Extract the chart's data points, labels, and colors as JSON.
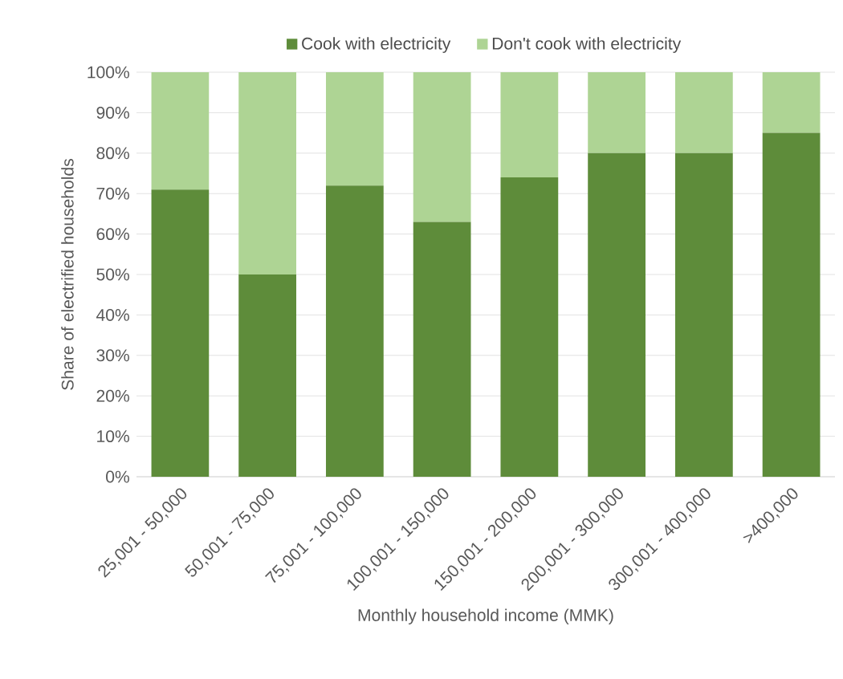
{
  "chart_data": {
    "type": "bar",
    "stacked": true,
    "xlabel": "Monthly household income (MMK)",
    "ylabel": "Share of electrified households",
    "categories": [
      "25,001 - 50,000",
      "50,001 - 75,000",
      "75,001 - 100,000",
      "100,001 - 150,000",
      "150,001 - 200,000",
      "200,001 - 300,000",
      "300,001 - 400,000",
      ">400,000"
    ],
    "series": [
      {
        "name": "Cook with electricity",
        "color": "#5e8c3a",
        "values": [
          71,
          50,
          72,
          63,
          74,
          80,
          80,
          85
        ]
      },
      {
        "name": "Don't cook with electricity",
        "color": "#aed494",
        "values": [
          29,
          50,
          28,
          37,
          26,
          20,
          20,
          15
        ]
      }
    ],
    "ylim": [
      0,
      100
    ],
    "yticks": [
      {
        "value": 0,
        "label": "0%"
      },
      {
        "value": 10,
        "label": "10%"
      },
      {
        "value": 20,
        "label": "20%"
      },
      {
        "value": 30,
        "label": "30%"
      },
      {
        "value": 40,
        "label": "40%"
      },
      {
        "value": 50,
        "label": "50%"
      },
      {
        "value": 60,
        "label": "60%"
      },
      {
        "value": 70,
        "label": "70%"
      },
      {
        "value": 80,
        "label": "80%"
      },
      {
        "value": 90,
        "label": "90%"
      },
      {
        "value": 100,
        "label": "100%"
      }
    ],
    "grid": "y",
    "legend": "top"
  }
}
